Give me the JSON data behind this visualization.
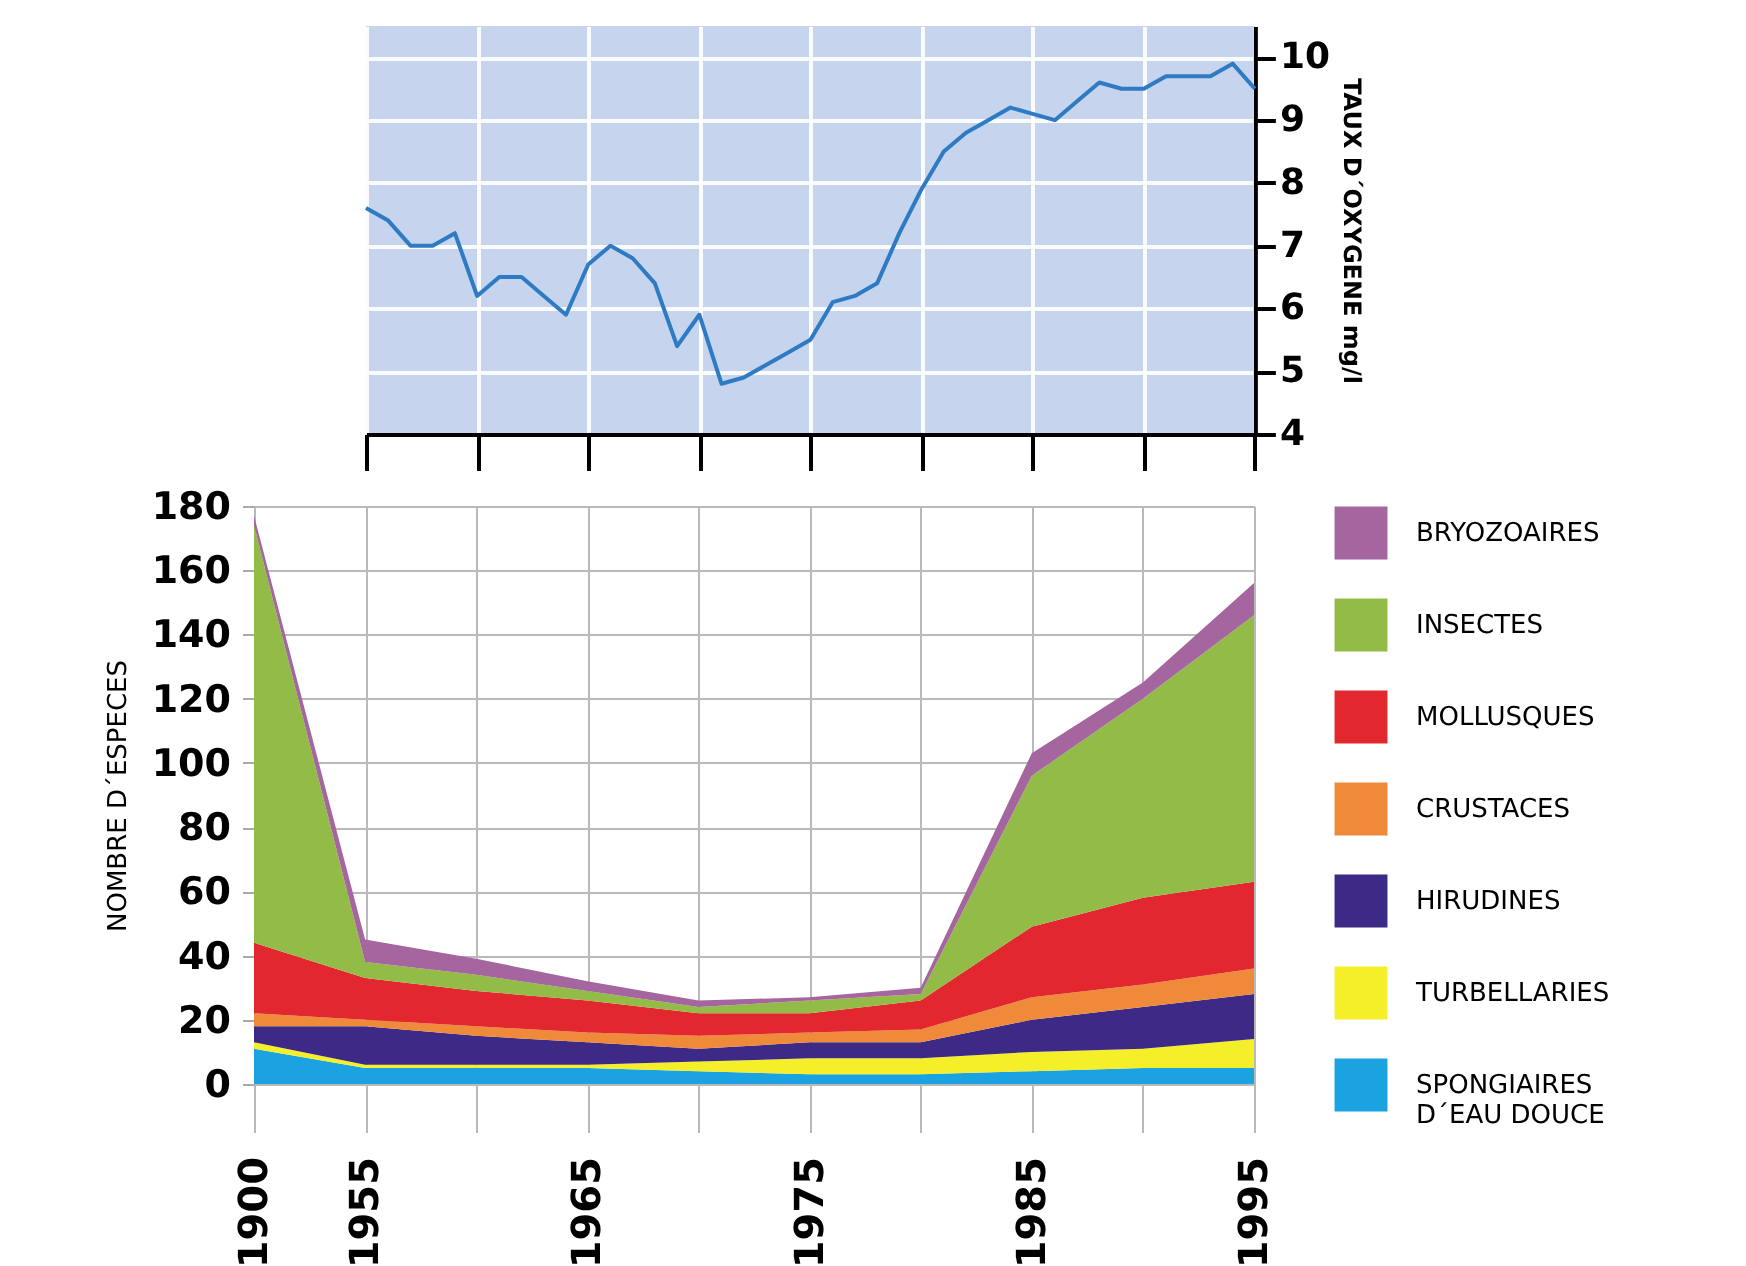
{
  "chart_data": [
    {
      "type": "line",
      "ylabel": "TAUX D´OXYGENE mg/l",
      "ylim": [
        4,
        10.5
      ],
      "yticks": [
        4,
        5,
        6,
        7,
        8,
        9,
        10
      ],
      "grid": true,
      "tick_labels": "y",
      "legend": false,
      "categories": [
        null,
        null,
        null,
        null,
        null,
        null,
        null,
        null,
        null,
        null,
        null,
        null,
        null,
        null,
        null,
        null,
        null,
        null,
        null,
        null,
        null,
        null,
        null,
        null,
        null,
        null,
        null,
        null,
        null,
        null,
        null,
        null,
        null,
        null,
        null,
        null,
        null,
        null,
        null,
        null,
        null
      ],
      "series": [
        {
          "color": "#2e7bc4",
          "values": [
            7.6,
            7.4,
            7.0,
            7.0,
            7.2,
            6.2,
            6.5,
            6.5,
            6.2,
            5.9,
            6.7,
            7.0,
            6.8,
            6.4,
            5.4,
            5.9,
            4.8,
            4.9,
            5.1,
            5.3,
            5.5,
            6.1,
            6.2,
            6.4,
            7.2,
            7.9,
            8.5,
            8.8,
            9.0,
            9.2,
            9.1,
            9.0,
            9.3,
            9.6,
            9.5,
            9.5,
            9.7,
            9.7,
            9.7,
            9.9,
            9.5
          ]
        }
      ]
    },
    {
      "type": "area",
      "stacked": true,
      "ylabel": "NOMBRE D´ESPECES",
      "ylim": [
        0,
        180
      ],
      "yticks": [
        0,
        20,
        40,
        60,
        80,
        100,
        120,
        140,
        160,
        180
      ],
      "grid": true,
      "legend": "right",
      "categories": [
        "1900",
        "1955",
        null,
        "1965",
        null,
        "1975",
        null,
        "1985",
        null,
        "1995"
      ],
      "series": [
        {
          "name": "SPONGIAIRES D´EAU DOUCE",
          "color": "#1aa3e0",
          "values": [
            11,
            5,
            5,
            5,
            4,
            3,
            3,
            4,
            5,
            5
          ]
        },
        {
          "name": "TURBELLARIES",
          "color": "#f5ef2a",
          "values": [
            2,
            1,
            1,
            1,
            3,
            5,
            5,
            6,
            6,
            9
          ]
        },
        {
          "name": "HIRUDINES",
          "color": "#3d2a86",
          "values": [
            5,
            12,
            9,
            7,
            4,
            5,
            5,
            10,
            13,
            14
          ]
        },
        {
          "name": "CRUSTACES",
          "color": "#ee8a3a",
          "values": [
            4,
            2,
            3,
            3,
            4,
            3,
            4,
            7,
            7,
            8
          ]
        },
        {
          "name": "MOLLUSQUES",
          "color": "#e2272e",
          "values": [
            22,
            13,
            11,
            10,
            7,
            6,
            9,
            22,
            27,
            27
          ]
        },
        {
          "name": "INSECTES",
          "color": "#93bb48",
          "values": [
            130,
            5,
            5,
            3,
            2,
            4,
            2,
            47,
            62,
            83
          ]
        },
        {
          "name": "BRYOZOAIRES",
          "color": "#a5659e",
          "values": [
            3,
            7,
            5,
            3,
            2,
            1,
            2,
            7,
            5,
            10
          ]
        }
      ]
    }
  ]
}
